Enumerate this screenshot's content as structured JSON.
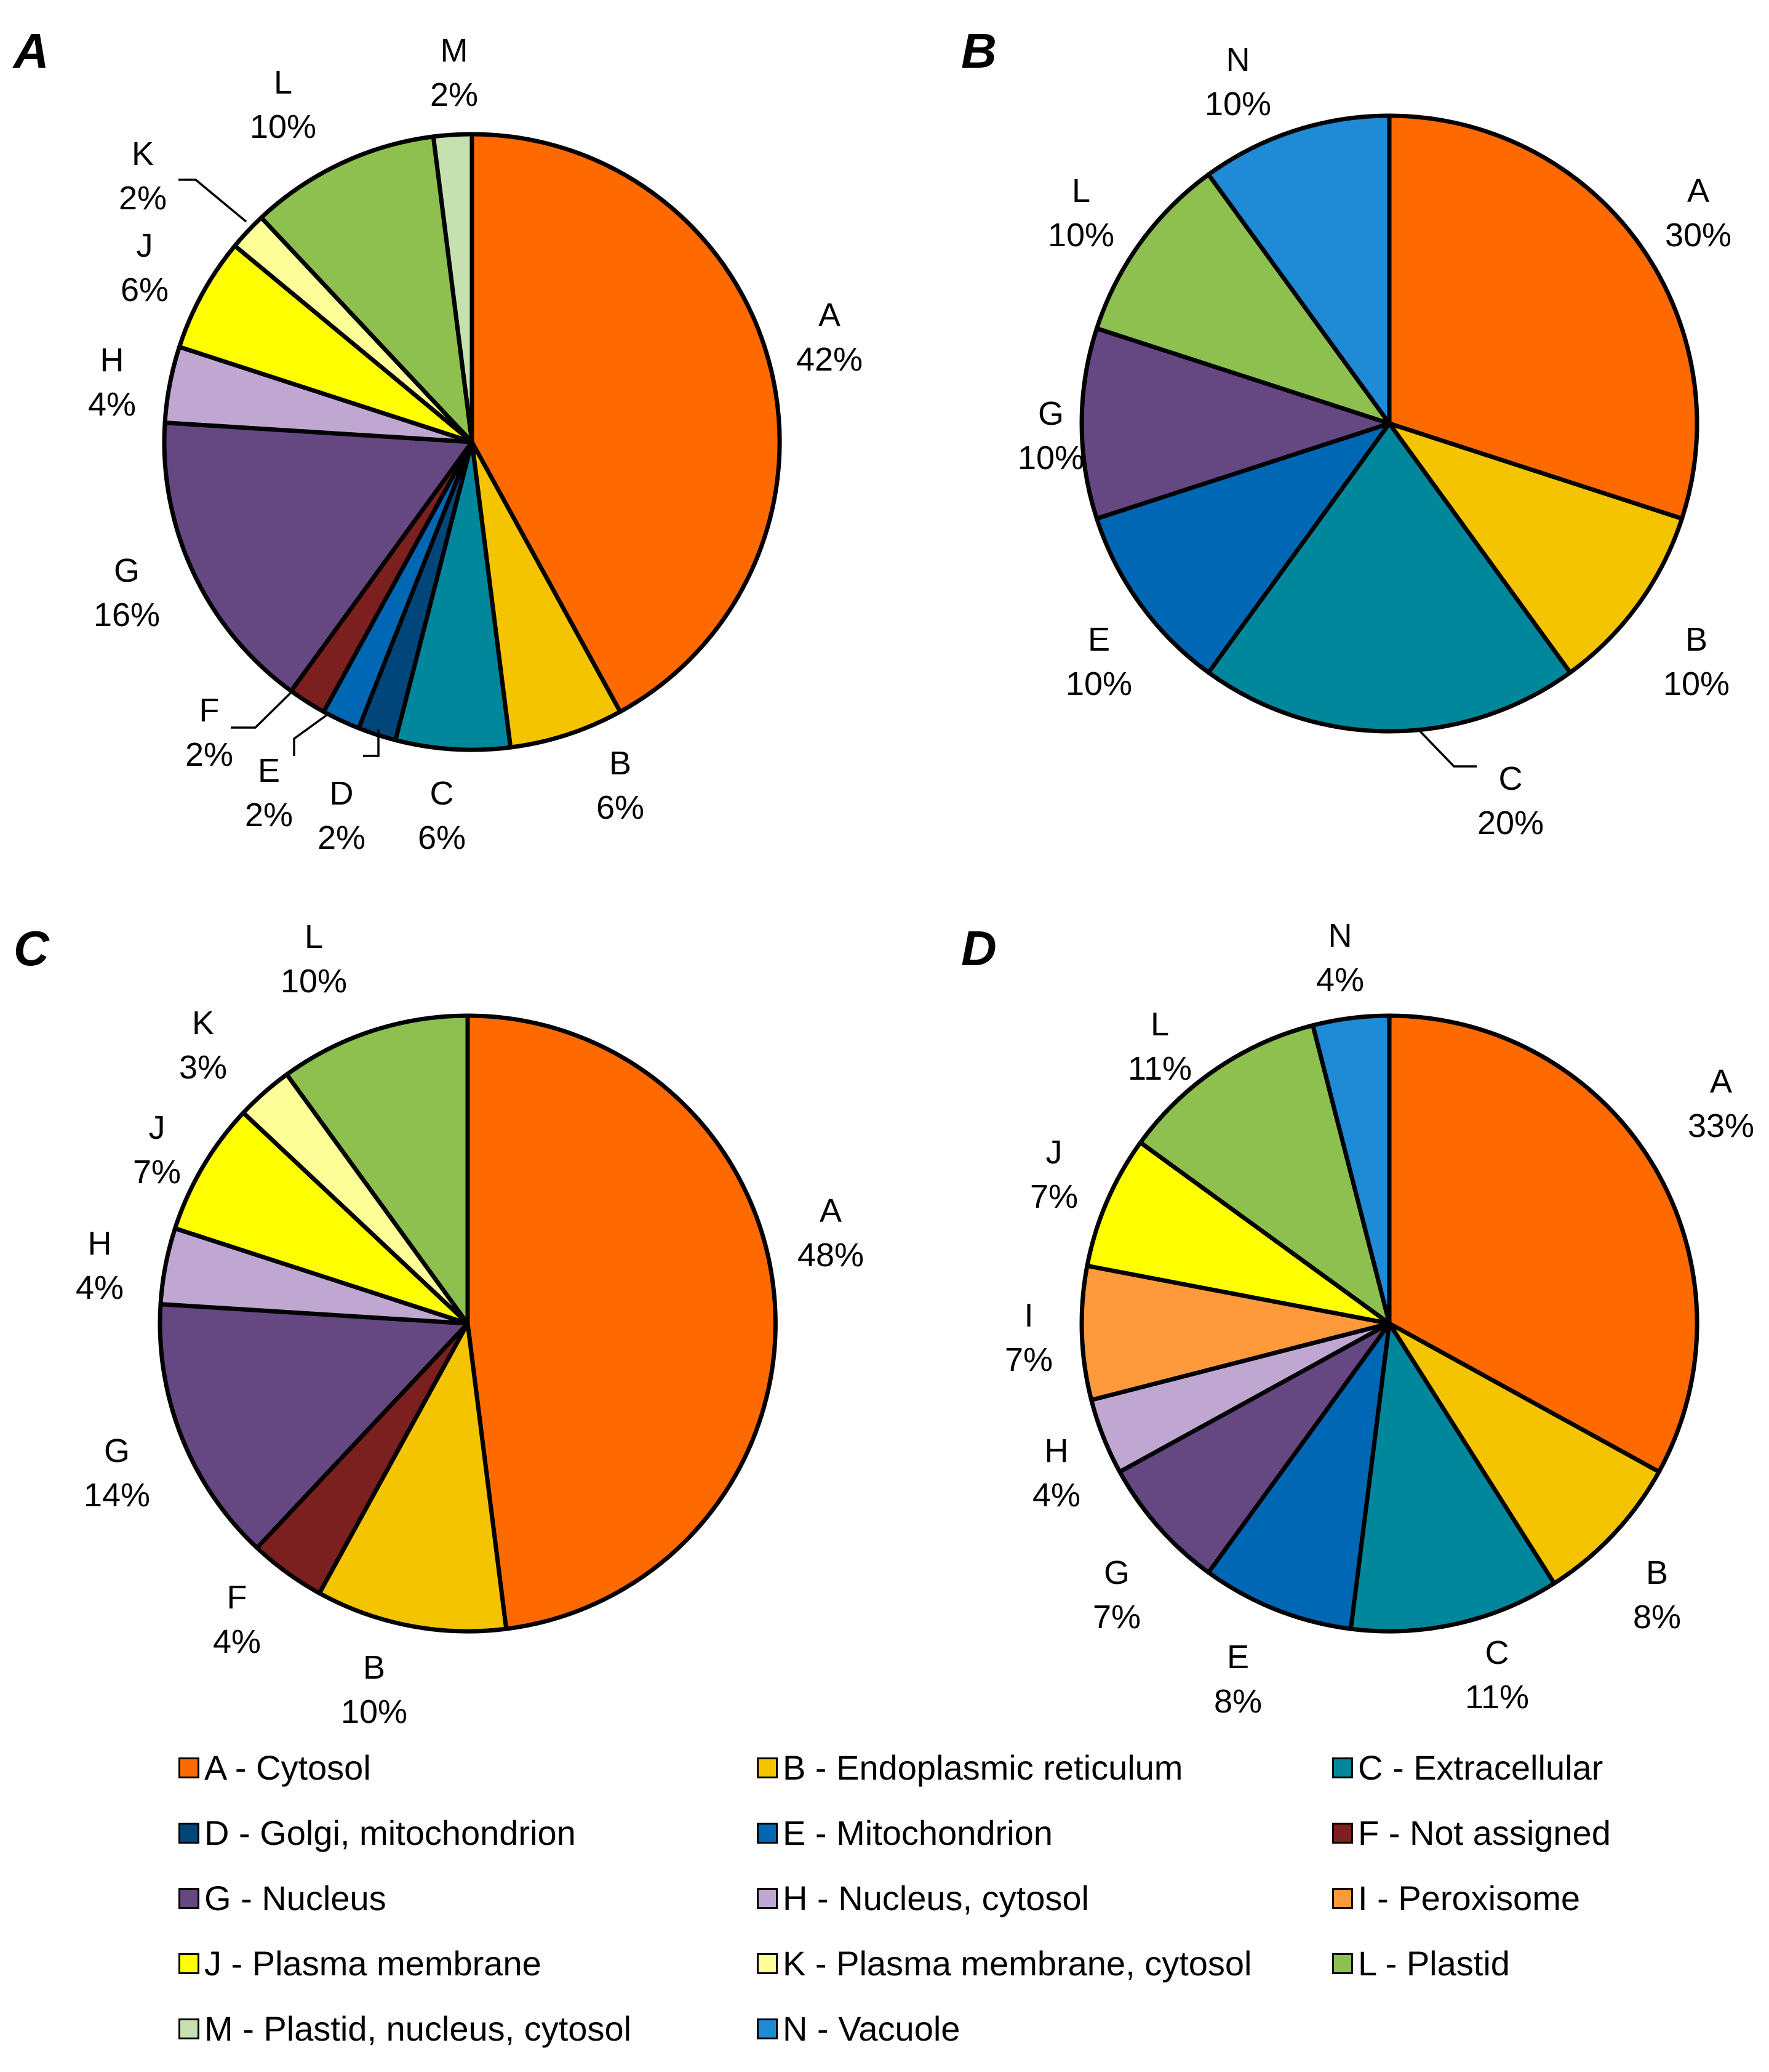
{
  "categories": [
    {
      "code": "A",
      "label": "A - Cytosol",
      "color": "#FF6A00"
    },
    {
      "code": "B",
      "label": "B - Endoplasmic reticulum",
      "color": "#F5C400"
    },
    {
      "code": "C",
      "label": "C - Extracellular",
      "color": "#00879C"
    },
    {
      "code": "D",
      "label": "D - Golgi, mitochondrion",
      "color": "#00467A"
    },
    {
      "code": "E",
      "label": "E - Mitochondrion",
      "color": "#0067B4"
    },
    {
      "code": "F",
      "label": "F - Not assigned",
      "color": "#7B1F1F"
    },
    {
      "code": "G",
      "label": "G - Nucleus",
      "color": "#654782"
    },
    {
      "code": "H",
      "label": "H - Nucleus, cytosol",
      "color": "#BFA7D1"
    },
    {
      "code": "I",
      "label": "I - Peroxisome",
      "color": "#FF9A3C"
    },
    {
      "code": "J",
      "label": "J - Plasma membrane",
      "color": "#FFFF00"
    },
    {
      "code": "K",
      "label": "K - Plasma membrane, cytosol",
      "color": "#FFFF99"
    },
    {
      "code": "L",
      "label": "L - Plastid",
      "color": "#8DC04F"
    },
    {
      "code": "M",
      "label": "M - Plastid, nucleus, cytosol",
      "color": "#C6E0B0"
    },
    {
      "code": "N",
      "label": "N - Vacuole",
      "color": "#1F8AD6"
    }
  ],
  "chart_data": [
    {
      "type": "pie",
      "panel": "A",
      "slices": [
        {
          "code": "A",
          "value": 42,
          "text": "42%"
        },
        {
          "code": "B",
          "value": 6,
          "text": "6%"
        },
        {
          "code": "C",
          "value": 6,
          "text": "6%"
        },
        {
          "code": "D",
          "value": 2,
          "text": "2%"
        },
        {
          "code": "E",
          "value": 2,
          "text": "2%"
        },
        {
          "code": "F",
          "value": 2,
          "text": "2%"
        },
        {
          "code": "G",
          "value": 16,
          "text": "16%"
        },
        {
          "code": "H",
          "value": 4,
          "text": "4%"
        },
        {
          "code": "J",
          "value": 6,
          "text": "6%"
        },
        {
          "code": "K",
          "value": 2,
          "text": "2%"
        },
        {
          "code": "L",
          "value": 10,
          "text": "10%"
        },
        {
          "code": "M",
          "value": 2,
          "text": "2%"
        }
      ]
    },
    {
      "type": "pie",
      "panel": "B",
      "slices": [
        {
          "code": "A",
          "value": 30,
          "text": "30%"
        },
        {
          "code": "B",
          "value": 10,
          "text": "10%"
        },
        {
          "code": "C",
          "value": 20,
          "text": "20%"
        },
        {
          "code": "E",
          "value": 10,
          "text": "10%"
        },
        {
          "code": "G",
          "value": 10,
          "text": "10%"
        },
        {
          "code": "L",
          "value": 10,
          "text": "10%"
        },
        {
          "code": "N",
          "value": 10,
          "text": "10%"
        }
      ]
    },
    {
      "type": "pie",
      "panel": "C",
      "slices": [
        {
          "code": "A",
          "value": 48,
          "text": "48%"
        },
        {
          "code": "B",
          "value": 10,
          "text": "10%"
        },
        {
          "code": "F",
          "value": 4,
          "text": "4%"
        },
        {
          "code": "G",
          "value": 14,
          "text": "14%"
        },
        {
          "code": "H",
          "value": 4,
          "text": "4%"
        },
        {
          "code": "J",
          "value": 7,
          "text": "7%"
        },
        {
          "code": "K",
          "value": 3,
          "text": "3%"
        },
        {
          "code": "L",
          "value": 10,
          "text": "10%"
        }
      ]
    },
    {
      "type": "pie",
      "panel": "D",
      "slices": [
        {
          "code": "A",
          "value": 33,
          "text": "33%"
        },
        {
          "code": "B",
          "value": 8,
          "text": "8%"
        },
        {
          "code": "C",
          "value": 11,
          "text": "11%"
        },
        {
          "code": "E",
          "value": 8,
          "text": "8%"
        },
        {
          "code": "G",
          "value": 7,
          "text": "7%"
        },
        {
          "code": "H",
          "value": 4,
          "text": "4%"
        },
        {
          "code": "I",
          "value": 7,
          "text": "7%"
        },
        {
          "code": "J",
          "value": 7,
          "text": "7%"
        },
        {
          "code": "L",
          "value": 11,
          "text": "11%"
        },
        {
          "code": "N",
          "value": 4,
          "text": "4%"
        }
      ]
    }
  ]
}
